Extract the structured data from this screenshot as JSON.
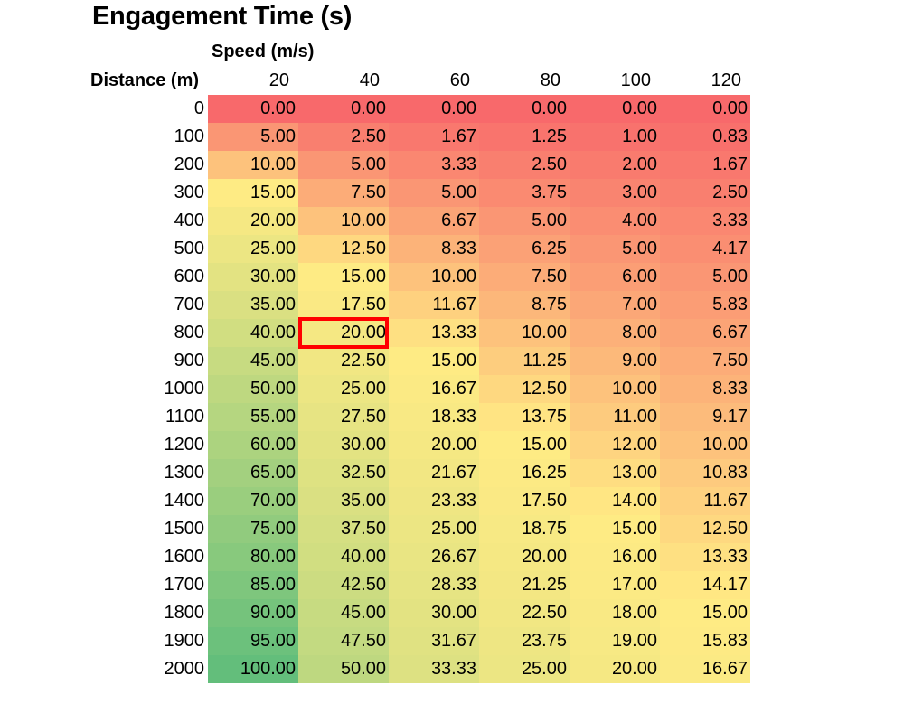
{
  "chart_data": {
    "type": "heatmap",
    "title": "Engagement Time (s)",
    "xlabel": "Speed (m/s)",
    "ylabel": "Distance (m)",
    "x": [
      20,
      40,
      60,
      80,
      100,
      120
    ],
    "x_labels": [
      "20",
      "40",
      "60",
      "80",
      "100",
      "120"
    ],
    "y": [
      0,
      100,
      200,
      300,
      400,
      500,
      600,
      700,
      800,
      900,
      1000,
      1100,
      1200,
      1300,
      1400,
      1500,
      1600,
      1700,
      1800,
      1900,
      2000
    ],
    "y_labels": [
      "0",
      "100",
      "200",
      "300",
      "400",
      "500",
      "600",
      "700",
      "800",
      "900",
      "1000",
      "1100",
      "1200",
      "1300",
      "1400",
      "1500",
      "1600",
      "1700",
      "1800",
      "1900",
      "2000"
    ],
    "values": [
      [
        "0.00",
        "0.00",
        "0.00",
        "0.00",
        "0.00",
        "0.00"
      ],
      [
        "5.00",
        "2.50",
        "1.67",
        "1.25",
        "1.00",
        "0.83"
      ],
      [
        "10.00",
        "5.00",
        "3.33",
        "2.50",
        "2.00",
        "1.67"
      ],
      [
        "15.00",
        "7.50",
        "5.00",
        "3.75",
        "3.00",
        "2.50"
      ],
      [
        "20.00",
        "10.00",
        "6.67",
        "5.00",
        "4.00",
        "3.33"
      ],
      [
        "25.00",
        "12.50",
        "8.33",
        "6.25",
        "5.00",
        "4.17"
      ],
      [
        "30.00",
        "15.00",
        "10.00",
        "7.50",
        "6.00",
        "5.00"
      ],
      [
        "35.00",
        "17.50",
        "11.67",
        "8.75",
        "7.00",
        "5.83"
      ],
      [
        "40.00",
        "20.00",
        "13.33",
        "10.00",
        "8.00",
        "6.67"
      ],
      [
        "45.00",
        "22.50",
        "15.00",
        "11.25",
        "9.00",
        "7.50"
      ],
      [
        "50.00",
        "25.00",
        "16.67",
        "12.50",
        "10.00",
        "8.33"
      ],
      [
        "55.00",
        "27.50",
        "18.33",
        "13.75",
        "11.00",
        "9.17"
      ],
      [
        "60.00",
        "30.00",
        "20.00",
        "15.00",
        "12.00",
        "10.00"
      ],
      [
        "65.00",
        "32.50",
        "21.67",
        "16.25",
        "13.00",
        "10.83"
      ],
      [
        "70.00",
        "35.00",
        "23.33",
        "17.50",
        "14.00",
        "11.67"
      ],
      [
        "75.00",
        "37.50",
        "25.00",
        "18.75",
        "15.00",
        "12.50"
      ],
      [
        "80.00",
        "40.00",
        "26.67",
        "20.00",
        "16.00",
        "13.33"
      ],
      [
        "85.00",
        "42.50",
        "28.33",
        "21.25",
        "17.00",
        "14.17"
      ],
      [
        "90.00",
        "45.00",
        "30.00",
        "22.50",
        "18.00",
        "15.00"
      ],
      [
        "95.00",
        "47.50",
        "31.67",
        "23.75",
        "19.00",
        "15.83"
      ],
      [
        "100.00",
        "50.00",
        "33.33",
        "25.00",
        "20.00",
        "16.67"
      ]
    ],
    "color_scale": {
      "low": "#f8696b",
      "mid": "#ffeb84",
      "high": "#63be7b"
    },
    "highlighted_cell": {
      "distance": 800,
      "speed": 40,
      "color": "#ff0000"
    }
  }
}
